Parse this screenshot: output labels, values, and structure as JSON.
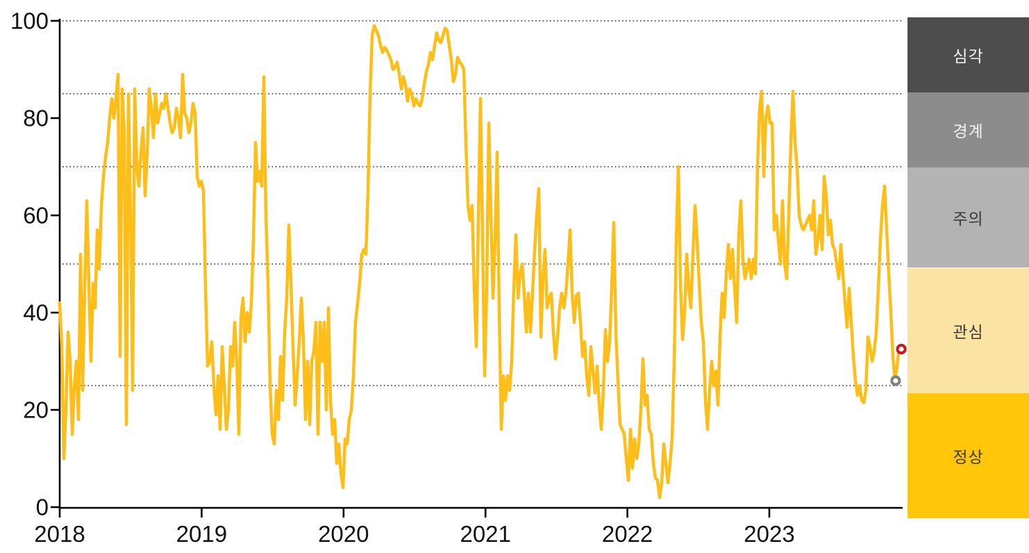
{
  "chart_data": {
    "type": "line",
    "title": "",
    "x_axis": {
      "label": "",
      "tick_labels": [
        "2018",
        "2019",
        "2020",
        "2021",
        "2022",
        "2023"
      ],
      "tick_values": [
        2018,
        2019,
        2020,
        2021,
        2022,
        2023
      ],
      "range": [
        2018.0,
        2023.94
      ]
    },
    "y_axis": {
      "label": "",
      "tick_labels": [
        "0",
        "20",
        "40",
        "60",
        "80",
        "100"
      ],
      "tick_values": [
        0,
        20,
        40,
        60,
        80,
        100
      ],
      "range": [
        0,
        100
      ],
      "gridlines": [
        100,
        85,
        70,
        50,
        25
      ],
      "gridline_style": "dotted"
    },
    "grid": "threshold-lines-only",
    "legend_position": "right-vertical-bands",
    "series": [
      {
        "name": "index-line",
        "color": "#FDBE1A",
        "x_start": 2018.0,
        "x_end": 2023.915,
        "sampling": "approx-weekly",
        "values": [
          42,
          33,
          10,
          20,
          36,
          30,
          15,
          25,
          30,
          18,
          52,
          24,
          45,
          63,
          46,
          30,
          46,
          41,
          57,
          49,
          62,
          68,
          72,
          75,
          80,
          84,
          80,
          84,
          89,
          31,
          86,
          77,
          17,
          85,
          60,
          24,
          86,
          70,
          66,
          73,
          78,
          64,
          73,
          86,
          82,
          76,
          85,
          79,
          81,
          83,
          82,
          85,
          82,
          79,
          77,
          78,
          82,
          80,
          76,
          89,
          81,
          80,
          77,
          79,
          83,
          81,
          68,
          66,
          67,
          65,
          45,
          29,
          30,
          34,
          25,
          19,
          27,
          16,
          33,
          25,
          16,
          20,
          33,
          29,
          38,
          30,
          15,
          39,
          43,
          34,
          40,
          36,
          42,
          55,
          75,
          67,
          69,
          66,
          88.5,
          60,
          46,
          25,
          15,
          13,
          24,
          18,
          31,
          22,
          36,
          43,
          58,
          46,
          33,
          21,
          27,
          34,
          43,
          34,
          18,
          30,
          17,
          30,
          32,
          38,
          15,
          38,
          30,
          38,
          20,
          41,
          22,
          15,
          18,
          9,
          13,
          7,
          4,
          14,
          13,
          18,
          20,
          27,
          38,
          42,
          46,
          52,
          53,
          52,
          65,
          85,
          97,
          99,
          98,
          97,
          95,
          93.5,
          94.5,
          94,
          93,
          92,
          90,
          90.5,
          91.5,
          89,
          86,
          88.5,
          87,
          83.5,
          86,
          85,
          82.5,
          84,
          83,
          82.5,
          84,
          87,
          89.5,
          91,
          93.5,
          92,
          95,
          97.5,
          96,
          95.5,
          97,
          98.5,
          98,
          95,
          92,
          87.5,
          89,
          92.5,
          91.5,
          91,
          90,
          75,
          62,
          59,
          62,
          45,
          33,
          60,
          84,
          55,
          27,
          45,
          79,
          60,
          43,
          55,
          73,
          40,
          16,
          27,
          22,
          27,
          24,
          30,
          45,
          56,
          43,
          48,
          50,
          44,
          36,
          44,
          36,
          44,
          53,
          60,
          65.5,
          35,
          47,
          53,
          41,
          43,
          44,
          36,
          30.5,
          35,
          41,
          44,
          41,
          44,
          50,
          57,
          44,
          38,
          43.5,
          44,
          38,
          31,
          34,
          27,
          23,
          33,
          28,
          23.5,
          29,
          21,
          16,
          24,
          36.5,
          30,
          34,
          45,
          58.5,
          36,
          26,
          17,
          16,
          15,
          10,
          5.5,
          16,
          8,
          14,
          10,
          13,
          20,
          30.5,
          21,
          23,
          16,
          15,
          9,
          6,
          5.5,
          2,
          5,
          13,
          9,
          5,
          9,
          14,
          30,
          55,
          70,
          46,
          34.5,
          40,
          52,
          45,
          41,
          52,
          62,
          55,
          46,
          38,
          34,
          22,
          16,
          24,
          30,
          25,
          28,
          21,
          35,
          44,
          39,
          48,
          54,
          47,
          53,
          45,
          38,
          56,
          63,
          51,
          47,
          49,
          51,
          47,
          51,
          48,
          70,
          82,
          85.5,
          68,
          80,
          82.5,
          79,
          79,
          57,
          60,
          55,
          50,
          63,
          50,
          47,
          60,
          75,
          85.5,
          75,
          70,
          60,
          58,
          57,
          58,
          59,
          60,
          57,
          63,
          52,
          55,
          60,
          53,
          68,
          64,
          56,
          59,
          54,
          53,
          50,
          47,
          54,
          48,
          42,
          37,
          45,
          38,
          31,
          26,
          23,
          25,
          22,
          21.5,
          24,
          35,
          33,
          30,
          32,
          36,
          45,
          55,
          62,
          66,
          57,
          48,
          40,
          31,
          26,
          29,
          33
        ]
      }
    ],
    "end_markers": [
      {
        "name": "latest-value-marker",
        "shape": "open-circle",
        "color": "#D0151C",
        "x": 2023.93,
        "y": 32.5
      },
      {
        "name": "previous-value-marker",
        "shape": "open-circle",
        "color": "#7F7F7F",
        "x": 2023.89,
        "y": 26
      }
    ],
    "threshold_bands": [
      {
        "label": "심각",
        "range": [
          85,
          100
        ],
        "color": "#4D4D4D",
        "text_color": "#F5F5F5"
      },
      {
        "label": "경계",
        "range": [
          70,
          85
        ],
        "color": "#8C8C8C",
        "text_color": "#F5F5F5"
      },
      {
        "label": "주의",
        "range": [
          50,
          70
        ],
        "color": "#B3B3B3",
        "text_color": "#3A3A3A"
      },
      {
        "label": "관심",
        "range": [
          25,
          50
        ],
        "color": "#FBE3A3",
        "text_color": "#3A3A3A"
      },
      {
        "label": "정상",
        "range": [
          0,
          25
        ],
        "color": "#FFC60A",
        "text_color": "#3A3A3A"
      }
    ],
    "axis_color": "#000000",
    "gridline_color": "#222222"
  }
}
